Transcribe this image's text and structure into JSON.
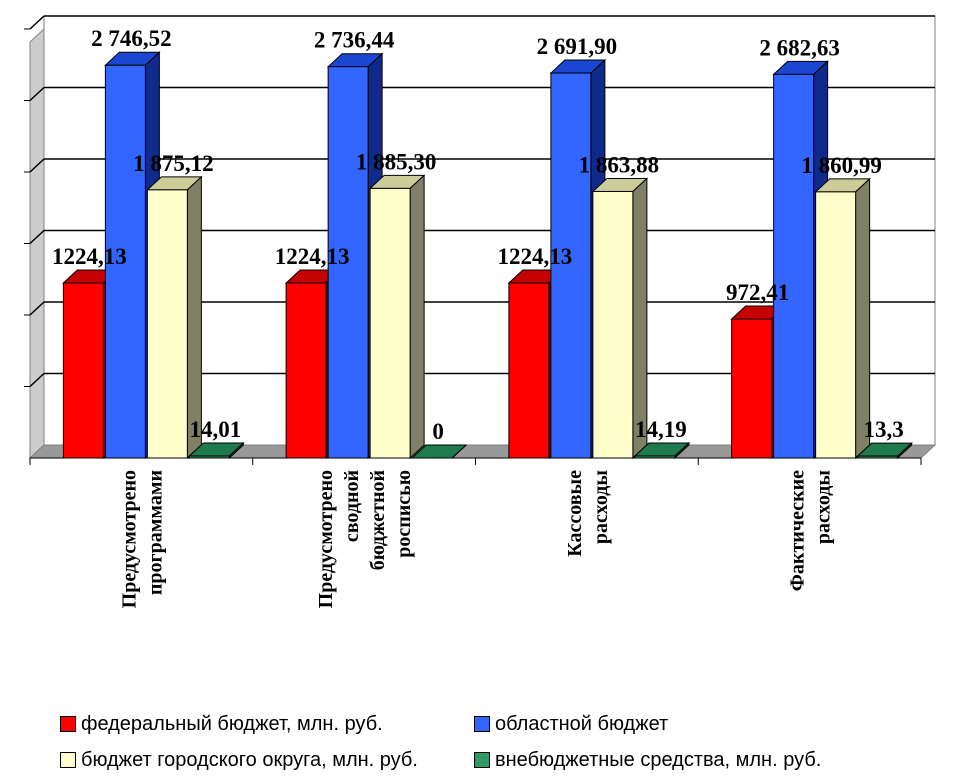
{
  "chart_data": {
    "type": "bar",
    "categories": [
      [
        "Предусмотрено",
        "программами"
      ],
      [
        "Предусмотрено",
        "сводной",
        "бюджетной",
        "росписью"
      ],
      [
        "Кассовые",
        "расходы"
      ],
      [
        "Фактические",
        "расходы"
      ]
    ],
    "series": [
      {
        "name": "федеральный бюджет, млн. руб.",
        "values": [
          1224.13,
          1224.13,
          1224.13,
          972.41
        ],
        "labels": [
          "1224,13",
          "1224,13",
          "1224,13",
          "972,41"
        ],
        "color": "#ff0000",
        "top": "#c40000",
        "side": "#7f0000"
      },
      {
        "name": "областной бюджет",
        "values": [
          2746.52,
          2736.44,
          2691.9,
          2682.63
        ],
        "labels": [
          "2 746,52",
          "2 736,44",
          "2 691,90",
          "2 682,63"
        ],
        "color": "#3366ff",
        "top": "#1a47d1",
        "side": "#102a8c"
      },
      {
        "name": "бюджет городского округа, млн. руб.",
        "values": [
          1875.12,
          1885.3,
          1863.88,
          1860.99
        ],
        "labels": [
          "1 875,12",
          "1 885,30",
          "1 863,88",
          "1 860,99"
        ],
        "color": "#ffffcc",
        "top": "#cccc99",
        "side": "#808066"
      },
      {
        "name": "внебюджетные средства, млн. руб.",
        "values": [
          14.01,
          0,
          14.19,
          13.3
        ],
        "labels": [
          "14,01",
          "0",
          "14,19",
          "13,3"
        ],
        "color": "#339966",
        "top": "#1f7a4d",
        "side": "#14502f"
      }
    ],
    "ylim": [
      0,
      3000
    ],
    "grid": true,
    "legend_position": "bottom"
  },
  "colors": {
    "floor": "#999999",
    "wall": "#ffffff",
    "gridline": "#000000"
  }
}
